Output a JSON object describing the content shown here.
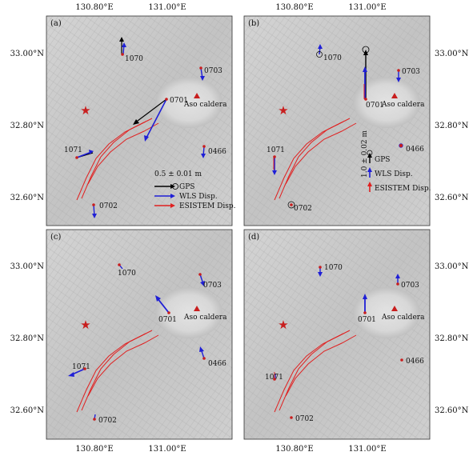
{
  "axis_labels": {
    "top": [
      "130.80°E",
      "131.00°E"
    ],
    "bottom": [
      "130.80°E",
      "131.00°E"
    ],
    "left": [
      "33.00°N",
      "32.80°N",
      "32.60°N"
    ],
    "right": [
      "33.00°N",
      "32.80°N",
      "32.60°N"
    ]
  },
  "map_labels": {
    "caldera": "Aso caldera",
    "stations": [
      "1070",
      "0703",
      "0701",
      "1071",
      "0466",
      "0702"
    ]
  },
  "panels": [
    {
      "tag": "(a)",
      "legend": {
        "scale": "0.5 ± 0.01 m",
        "items": [
          "GPS",
          "WLS Disp.",
          "ESISTEM Disp."
        ]
      }
    },
    {
      "tag": "(b)",
      "legend": {
        "scale": "1.0 ± 0.02 m",
        "items": [
          "GPS",
          "WLS Disp.",
          "ESISTEM Disp."
        ]
      }
    },
    {
      "tag": "(c)"
    },
    {
      "tag": "(d)"
    }
  ],
  "colors": {
    "gps": "#000000",
    "wls": "#1f1fd6",
    "esistem": "#e02020",
    "fault": "#e02020",
    "epicenter": "#c81e1e",
    "caldera": "#c81e1e"
  }
}
